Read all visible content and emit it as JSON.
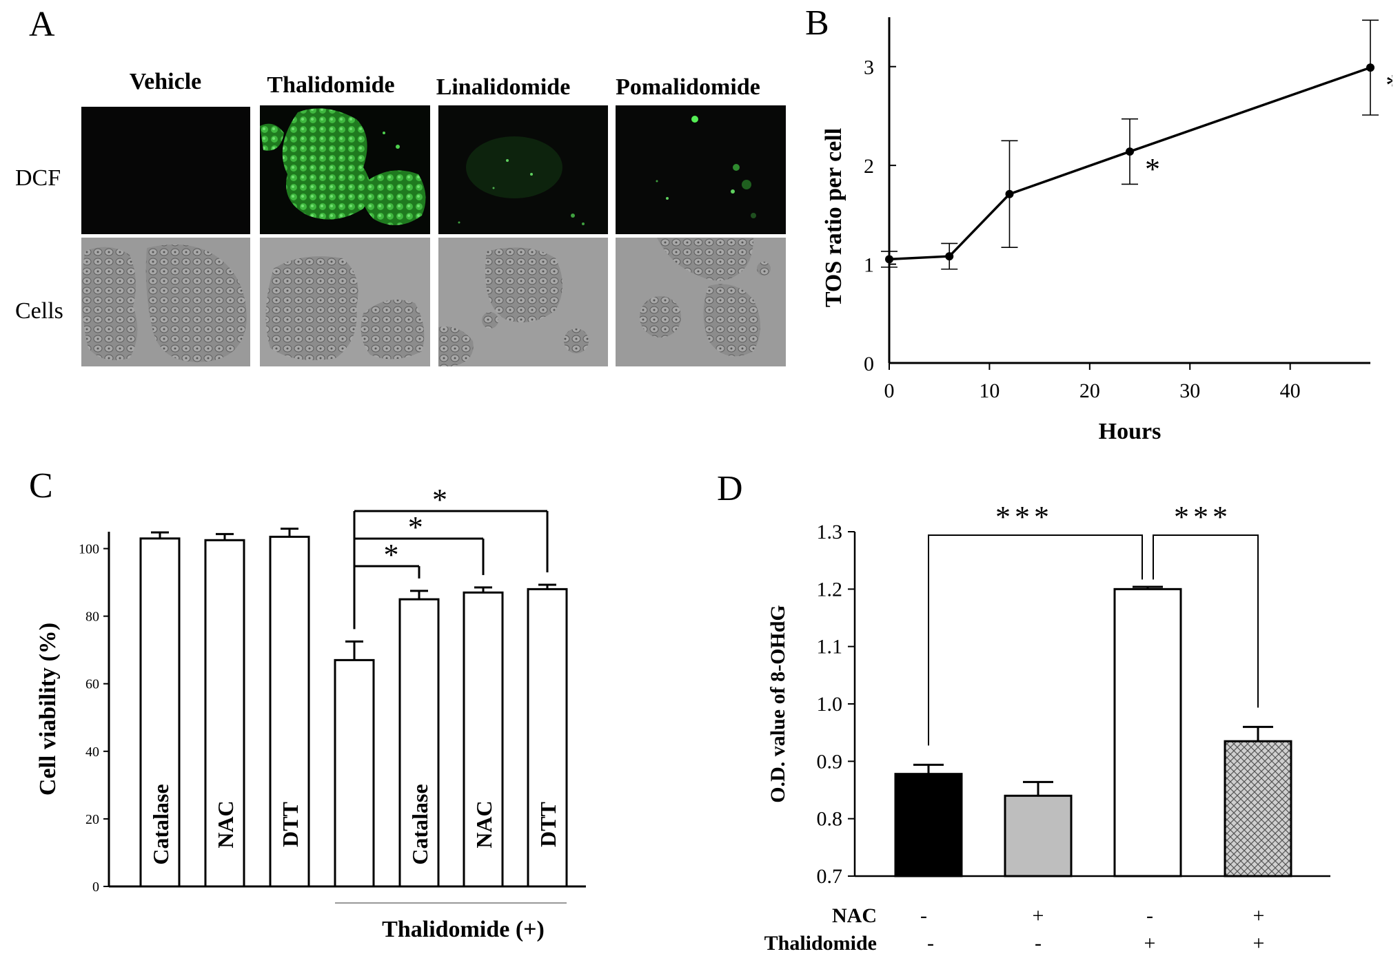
{
  "panels": {
    "a": {
      "label": "A",
      "conditions": [
        "Vehicle",
        "Thalidomide",
        "Linalidomide",
        "Pomalidomide"
      ],
      "rows": [
        "DCF",
        "Cells"
      ]
    },
    "b": {
      "label": "B"
    },
    "c": {
      "label": "C"
    },
    "d": {
      "label": "D"
    }
  },
  "chart_data": [
    {
      "id": "B",
      "type": "line",
      "xlabel": "Hours",
      "ylabel": "TOS ratio per cell",
      "xlim": [
        0,
        48
      ],
      "ylim": [
        0,
        3.5
      ],
      "xticks": [
        0,
        10,
        20,
        30,
        40
      ],
      "yticks": [
        0,
        1,
        2,
        3
      ],
      "series": [
        {
          "x": [
            0,
            6,
            12,
            24,
            48
          ],
          "y": [
            1.05,
            1.08,
            1.71,
            2.14,
            2.99
          ],
          "err": [
            0.08,
            0.13,
            0.54,
            0.33,
            0.48
          ],
          "sig": [
            "",
            "",
            "",
            "*",
            "*"
          ]
        }
      ]
    },
    {
      "id": "C",
      "type": "bar",
      "ylabel": "Cell viability (%)",
      "ylim": [
        0,
        105
      ],
      "yticks": [
        0,
        20,
        40,
        60,
        80,
        100
      ],
      "categories": [
        "Catalase",
        "NAC",
        "DTT",
        "",
        "Catalase",
        "NAC",
        "DTT"
      ],
      "values": [
        103,
        102.5,
        103.5,
        67,
        85,
        87,
        88
      ],
      "err": [
        1.8,
        1.8,
        2.4,
        5.5,
        2.5,
        1.5,
        1.3
      ],
      "group_label": "Thalidomide (+)",
      "comparisons": [
        {
          "from": 3,
          "to": 4,
          "mark": "*"
        },
        {
          "from": 3,
          "to": 5,
          "mark": "*"
        },
        {
          "from": 3,
          "to": 6,
          "mark": "*"
        }
      ]
    },
    {
      "id": "D",
      "type": "bar",
      "ylabel": "O.D. value of 8-OHdG",
      "ylim": [
        0.7,
        1.3
      ],
      "yticks": [
        "0.7",
        "0.8",
        "0.9",
        "1.0",
        "1.1",
        "1.2",
        "1.3"
      ],
      "values": [
        0.878,
        0.84,
        1.2,
        0.935
      ],
      "err": [
        0.016,
        0.024,
        0.004,
        0.025
      ],
      "fills": [
        "#000000",
        "#bebebe",
        "#ffffff",
        "hatch"
      ],
      "row_labels": [
        "NAC",
        "Thalidomide"
      ],
      "rows": [
        [
          "-",
          "+",
          "-",
          "+"
        ],
        [
          "-",
          "-",
          "+",
          "+"
        ]
      ],
      "comparisons": [
        {
          "from": 0,
          "to": 2,
          "mark": "***"
        },
        {
          "from": 2,
          "to": 3,
          "mark": "***"
        }
      ]
    }
  ]
}
